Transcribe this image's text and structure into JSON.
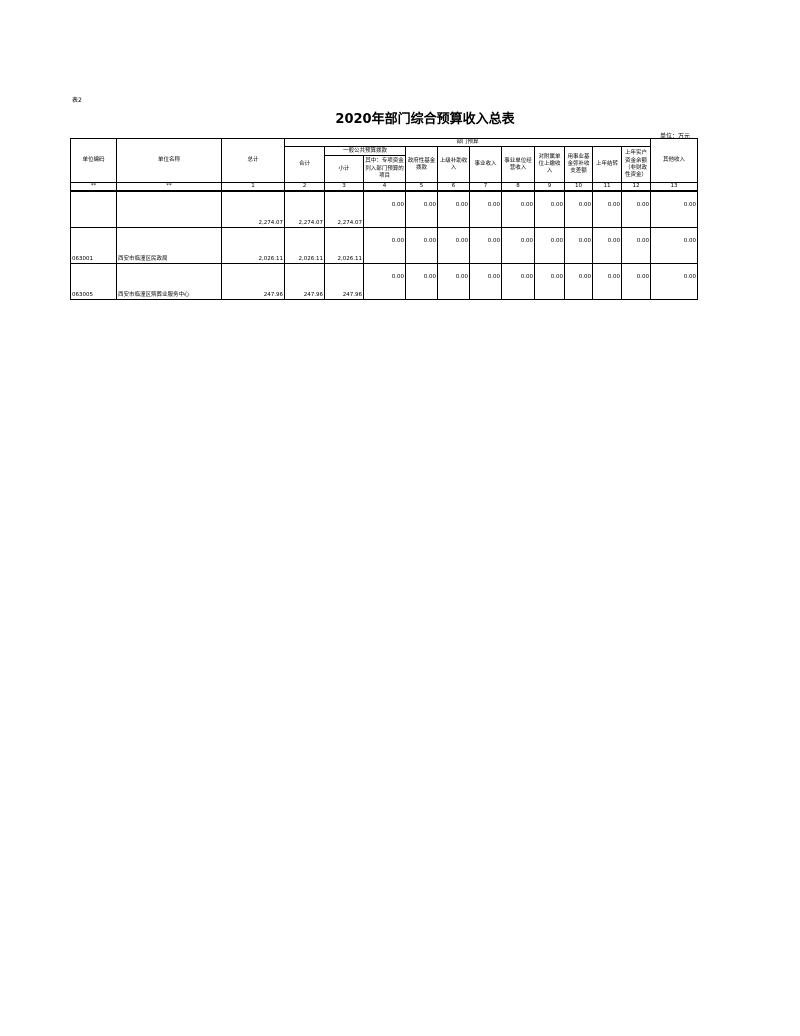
{
  "table_label": "表2",
  "title": "2020年部门综合预算收入总表",
  "unit": "单位：万元",
  "headers": {
    "code": "单位编码",
    "name": "单位名称",
    "total": "总计",
    "dept_budget": "部门预算",
    "sum": "合计",
    "general": "一般公共预算拨款",
    "subtotal": "小计",
    "special": "其中：专项资金列入部门预算的项目",
    "gov_fund": "政府性基金拨款",
    "upper_subsidy": "上级补助收入",
    "business": "事业收入",
    "operating": "事业单位经营收入",
    "affiliated": "对附属单位上缴收入",
    "fund_subsidy": "用事业基金弥补收支差额",
    "carryover": "上年结转",
    "prior_balance": "上年实户资金余额（非财政性资金）",
    "other": "其他收入"
  },
  "col_numbers": [
    "**",
    "**",
    "1",
    "2",
    "3",
    "4",
    "5",
    "6",
    "7",
    "8",
    "9",
    "10",
    "11",
    "12",
    "13"
  ],
  "rows": [
    {
      "code": "",
      "name": "",
      "total": "2,274.07",
      "sum": "2,274.07",
      "subtotal": "2,274.07",
      "c4": "0.00",
      "c5": "0.00",
      "c6": "0.00",
      "c7": "0.00",
      "c8": "0.00",
      "c9": "0.00",
      "c10": "0.00",
      "c11": "0.00",
      "c12": "0.00",
      "c13": "0.00"
    },
    {
      "code": "063001",
      "name": "西安市临潼区民政局",
      "total": "2,026.11",
      "sum": "2,026.11",
      "subtotal": "2,026.11",
      "c4": "0.00",
      "c5": "0.00",
      "c6": "0.00",
      "c7": "0.00",
      "c8": "0.00",
      "c9": "0.00",
      "c10": "0.00",
      "c11": "0.00",
      "c12": "0.00",
      "c13": "0.00"
    },
    {
      "code": "063005",
      "name": "西安市临潼区殡葬业服务中心",
      "total": "247.96",
      "sum": "247.96",
      "subtotal": "247.96",
      "c4": "0.00",
      "c5": "0.00",
      "c6": "0.00",
      "c7": "0.00",
      "c8": "0.00",
      "c9": "0.00",
      "c10": "0.00",
      "c11": "0.00",
      "c12": "0.00",
      "c13": "0.00"
    }
  ]
}
